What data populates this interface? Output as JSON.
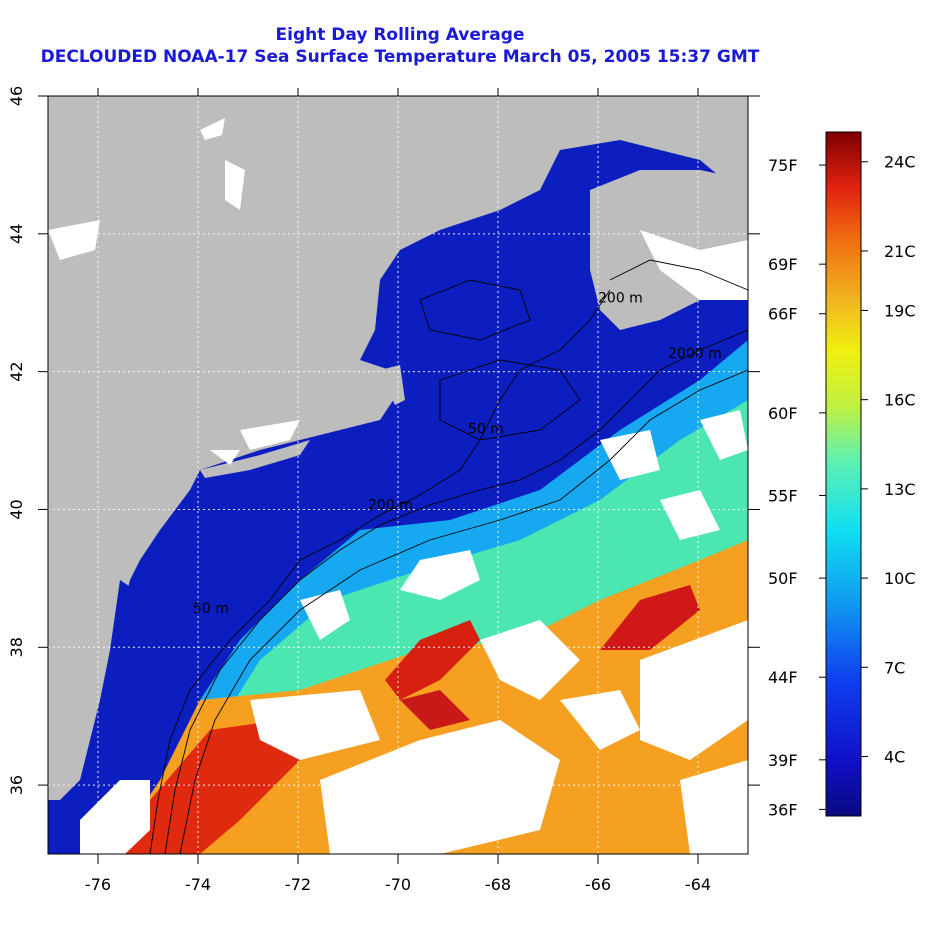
{
  "title": {
    "line1": "Eight Day Rolling Average",
    "line2": "DECLOUDED NOAA-17 Sea Surface Temperature March 05, 2005 15:37 GMT"
  },
  "map": {
    "lon_range": [
      -77,
      -63
    ],
    "lat_range": [
      35,
      46
    ],
    "x_ticks": [
      "-76",
      "-74",
      "-72",
      "-70",
      "-68",
      "-66",
      "-64"
    ],
    "x_tick_values": [
      -76,
      -74,
      -72,
      -70,
      -68,
      -66,
      -64
    ],
    "y_ticks": [
      "36",
      "38",
      "40",
      "42",
      "44",
      "46"
    ],
    "y_tick_values": [
      36,
      38,
      40,
      42,
      44,
      46
    ],
    "colors": {
      "land": "#bdbdbd",
      "cloud": "#ffffff",
      "cold": "#0a1ec8",
      "warm": "#e02a10"
    },
    "contour_labels": [
      {
        "text": "50 m",
        "lon": -74.1,
        "lat": 38.5
      },
      {
        "text": "200 m",
        "lon": -70.6,
        "lat": 40.0
      },
      {
        "text": "50 m",
        "lon": -68.6,
        "lat": 41.1
      },
      {
        "text": "200 m",
        "lon": -66.0,
        "lat": 43.0
      },
      {
        "text": "2000 m",
        "lon": -64.6,
        "lat": 42.2
      }
    ]
  },
  "colorbar": {
    "celsius_labels": [
      {
        "text": "24C",
        "value": 24
      },
      {
        "text": "21C",
        "value": 21
      },
      {
        "text": "19C",
        "value": 19
      },
      {
        "text": "16C",
        "value": 16
      },
      {
        "text": "13C",
        "value": 13
      },
      {
        "text": "10C",
        "value": 10
      },
      {
        "text": "7C",
        "value": 7
      },
      {
        "text": "4C",
        "value": 4
      }
    ],
    "fahrenheit_labels": [
      {
        "text": "75F",
        "value": 75
      },
      {
        "text": "69F",
        "value": 69
      },
      {
        "text": "66F",
        "value": 66
      },
      {
        "text": "60F",
        "value": 60
      },
      {
        "text": "55F",
        "value": 55
      },
      {
        "text": "50F",
        "value": 50
      },
      {
        "text": "44F",
        "value": 44
      },
      {
        "text": "39F",
        "value": 39
      },
      {
        "text": "36F",
        "value": 36
      }
    ],
    "range_c": [
      2,
      25
    ]
  }
}
